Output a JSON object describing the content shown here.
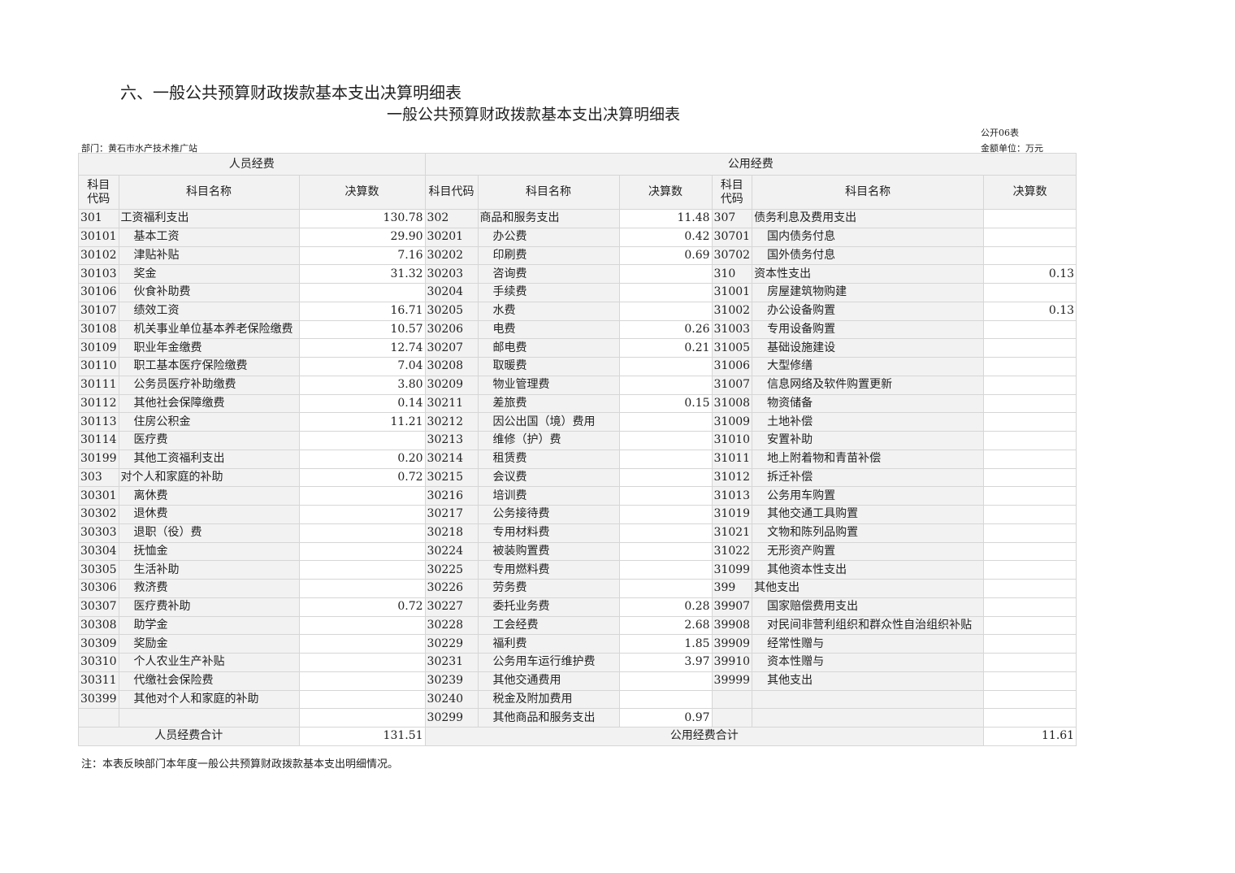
{
  "section_title": "六、一般公共预算财政拨款基本支出决算明细表",
  "table_title": "一般公共预算财政拨款基本支出决算明细表",
  "form_no": "公开06表",
  "department": "部门：黄石市水产技术推广站",
  "unit": "金额单位：万元",
  "groups": {
    "personnel": "人员经费",
    "public": "公用经费"
  },
  "headers": {
    "code": "科目代码",
    "code_wrapped": "科目\n代码",
    "name": "科目名称",
    "amount": "决算数"
  },
  "rows": [
    [
      [
        "301",
        "工资福利支出",
        "130.78"
      ],
      [
        "302",
        "商品和服务支出",
        "11.48"
      ],
      [
        "307",
        "债务利息及费用支出",
        ""
      ]
    ],
    [
      [
        "30101",
        "基本工资",
        "29.90"
      ],
      [
        "30201",
        "办公费",
        "0.42"
      ],
      [
        "30701",
        "国内债务付息",
        ""
      ]
    ],
    [
      [
        "30102",
        "津贴补贴",
        "7.16"
      ],
      [
        "30202",
        "印刷费",
        "0.69"
      ],
      [
        "30702",
        "国外债务付息",
        ""
      ]
    ],
    [
      [
        "30103",
        "奖金",
        "31.32"
      ],
      [
        "30203",
        "咨询费",
        ""
      ],
      [
        "310",
        "资本性支出",
        "0.13"
      ]
    ],
    [
      [
        "30106",
        "伙食补助费",
        ""
      ],
      [
        "30204",
        "手续费",
        ""
      ],
      [
        "31001",
        "房屋建筑物购建",
        ""
      ]
    ],
    [
      [
        "30107",
        "绩效工资",
        "16.71"
      ],
      [
        "30205",
        "水费",
        ""
      ],
      [
        "31002",
        "办公设备购置",
        "0.13"
      ]
    ],
    [
      [
        "30108",
        "机关事业单位基本养老保险缴费",
        "10.57"
      ],
      [
        "30206",
        "电费",
        "0.26"
      ],
      [
        "31003",
        "专用设备购置",
        ""
      ]
    ],
    [
      [
        "30109",
        "职业年金缴费",
        "12.74"
      ],
      [
        "30207",
        "邮电费",
        "0.21"
      ],
      [
        "31005",
        "基础设施建设",
        ""
      ]
    ],
    [
      [
        "30110",
        "职工基本医疗保险缴费",
        "7.04"
      ],
      [
        "30208",
        "取暖费",
        ""
      ],
      [
        "31006",
        "大型修缮",
        ""
      ]
    ],
    [
      [
        "30111",
        "公务员医疗补助缴费",
        "3.80"
      ],
      [
        "30209",
        "物业管理费",
        ""
      ],
      [
        "31007",
        "信息网络及软件购置更新",
        ""
      ]
    ],
    [
      [
        "30112",
        "其他社会保障缴费",
        "0.14"
      ],
      [
        "30211",
        "差旅费",
        "0.15"
      ],
      [
        "31008",
        "物资储备",
        ""
      ]
    ],
    [
      [
        "30113",
        "住房公积金",
        "11.21"
      ],
      [
        "30212",
        "因公出国（境）费用",
        ""
      ],
      [
        "31009",
        "土地补偿",
        ""
      ]
    ],
    [
      [
        "30114",
        "医疗费",
        ""
      ],
      [
        "30213",
        "维修（护）费",
        ""
      ],
      [
        "31010",
        "安置补助",
        ""
      ]
    ],
    [
      [
        "30199",
        "其他工资福利支出",
        "0.20"
      ],
      [
        "30214",
        "租赁费",
        ""
      ],
      [
        "31011",
        "地上附着物和青苗补偿",
        ""
      ]
    ],
    [
      [
        "303",
        "对个人和家庭的补助",
        "0.72"
      ],
      [
        "30215",
        "会议费",
        ""
      ],
      [
        "31012",
        "拆迁补偿",
        ""
      ]
    ],
    [
      [
        "30301",
        "离休费",
        ""
      ],
      [
        "30216",
        "培训费",
        ""
      ],
      [
        "31013",
        "公务用车购置",
        ""
      ]
    ],
    [
      [
        "30302",
        "退休费",
        ""
      ],
      [
        "30217",
        "公务接待费",
        ""
      ],
      [
        "31019",
        "其他交通工具购置",
        ""
      ]
    ],
    [
      [
        "30303",
        "退职（役）费",
        ""
      ],
      [
        "30218",
        "专用材料费",
        ""
      ],
      [
        "31021",
        "文物和陈列品购置",
        ""
      ]
    ],
    [
      [
        "30304",
        "抚恤金",
        ""
      ],
      [
        "30224",
        "被装购置费",
        ""
      ],
      [
        "31022",
        "无形资产购置",
        ""
      ]
    ],
    [
      [
        "30305",
        "生活补助",
        ""
      ],
      [
        "30225",
        "专用燃料费",
        ""
      ],
      [
        "31099",
        "其他资本性支出",
        ""
      ]
    ],
    [
      [
        "30306",
        "救济费",
        ""
      ],
      [
        "30226",
        "劳务费",
        ""
      ],
      [
        "399",
        "其他支出",
        ""
      ]
    ],
    [
      [
        "30307",
        "医疗费补助",
        "0.72"
      ],
      [
        "30227",
        "委托业务费",
        "0.28"
      ],
      [
        "39907",
        "国家赔偿费用支出",
        ""
      ]
    ],
    [
      [
        "30308",
        "助学金",
        ""
      ],
      [
        "30228",
        "工会经费",
        "2.68"
      ],
      [
        "39908",
        "对民间非营利组织和群众性自治组织补贴",
        ""
      ]
    ],
    [
      [
        "30309",
        "奖励金",
        ""
      ],
      [
        "30229",
        "福利费",
        "1.85"
      ],
      [
        "39909",
        "经常性赠与",
        ""
      ]
    ],
    [
      [
        "30310",
        "个人农业生产补贴",
        ""
      ],
      [
        "30231",
        "公务用车运行维护费",
        "3.97"
      ],
      [
        "39910",
        "资本性赠与",
        ""
      ]
    ],
    [
      [
        "30311",
        "代缴社会保险费",
        ""
      ],
      [
        "30239",
        "其他交通费用",
        ""
      ],
      [
        "39999",
        "其他支出",
        ""
      ]
    ],
    [
      [
        "30399",
        "其他对个人和家庭的补助",
        ""
      ],
      [
        "30240",
        "税金及附加费用",
        ""
      ],
      [
        "",
        "",
        " "
      ]
    ],
    [
      [
        "",
        "",
        ""
      ],
      [
        "30299",
        "其他商品和服务支出",
        "0.97"
      ],
      [
        "",
        "",
        ""
      ]
    ]
  ],
  "totals": {
    "personnel_label": "人员经费合计",
    "personnel_value": "131.51",
    "public_label": "公用经费合计",
    "public_value": "11.61"
  },
  "note": "注：本表反映部门本年度一般公共预算财政拨款基本支出明细情况。"
}
